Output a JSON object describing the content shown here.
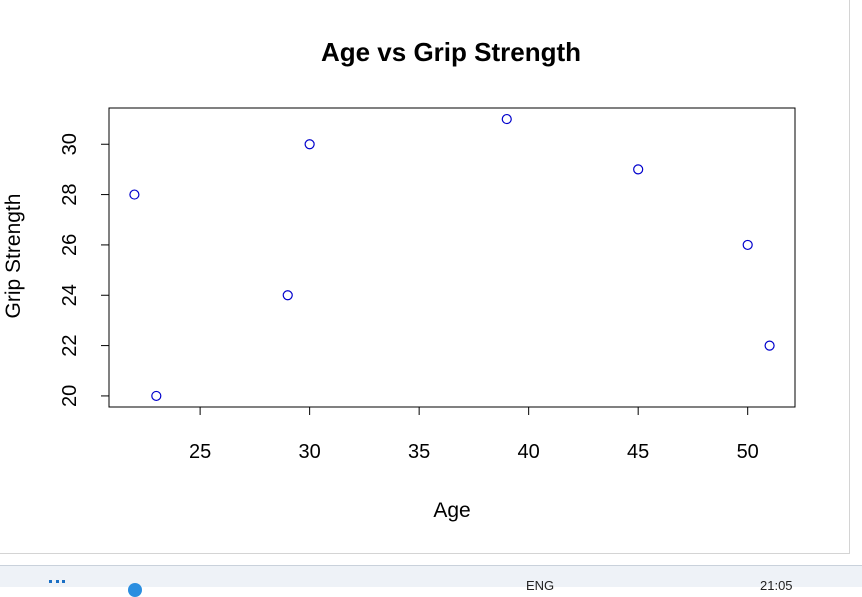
{
  "chart_data": {
    "type": "scatter",
    "title": "Age vs Grip Strength",
    "xlabel": "Age",
    "ylabel": "Grip Strength",
    "x": [
      22,
      23,
      29,
      30,
      39,
      45,
      50,
      51
    ],
    "y": [
      28,
      20,
      24,
      30,
      31,
      29,
      26,
      22
    ],
    "xlim": [
      20.84,
      52.16
    ],
    "ylim": [
      19.56,
      31.44
    ],
    "xticks": [
      "25",
      "30",
      "35",
      "40",
      "45",
      "50"
    ],
    "yticks": [
      "20",
      "22",
      "24",
      "26",
      "28",
      "30"
    ],
    "marker": "open-circle",
    "marker_color": "#0000cc",
    "grid": false
  },
  "taskbar": {
    "lang": "ENG",
    "time": "21:05"
  }
}
